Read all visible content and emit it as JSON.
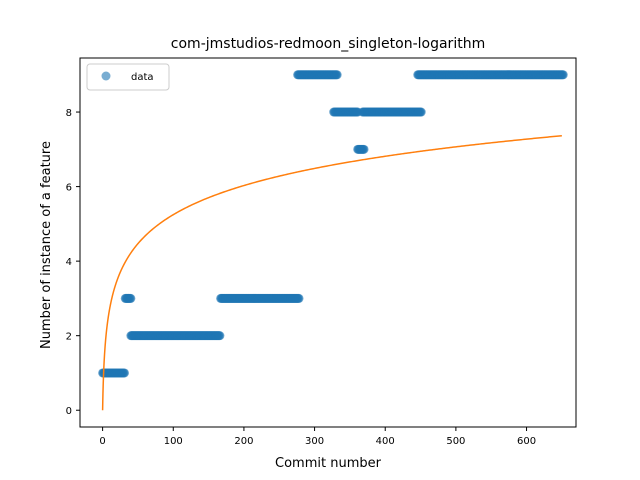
{
  "chart_data": {
    "type": "scatter",
    "title": "com-jmstudios-redmoon_singleton-logarithm",
    "xlabel": "Commit number",
    "ylabel": "Number of instance of a feature",
    "xlim": [
      -32,
      670
    ],
    "ylim": [
      -0.45,
      9.45
    ],
    "xticks": [
      0,
      100,
      200,
      300,
      400,
      500,
      600
    ],
    "yticks": [
      0,
      2,
      4,
      6,
      8
    ],
    "grid": false,
    "legend": {
      "position": "top-left",
      "entries": [
        "data"
      ]
    },
    "colors": {
      "data": "#1f77b4",
      "fit": "#ff7f0e"
    },
    "series": [
      {
        "name": "data",
        "kind": "scatter",
        "segments": [
          {
            "x_start": 0,
            "x_end": 31,
            "y": 1
          },
          {
            "x_start": 32,
            "x_end": 40,
            "y": 3
          },
          {
            "x_start": 40,
            "x_end": 166,
            "y": 2
          },
          {
            "x_start": 167,
            "x_end": 278,
            "y": 3
          },
          {
            "x_start": 276,
            "x_end": 332,
            "y": 9
          },
          {
            "x_start": 327,
            "x_end": 361,
            "y": 8
          },
          {
            "x_start": 361,
            "x_end": 370,
            "y": 7
          },
          {
            "x_start": 368,
            "x_end": 451,
            "y": 8
          },
          {
            "x_start": 446,
            "x_end": 652,
            "y": 9
          }
        ]
      },
      {
        "name": "",
        "kind": "line",
        "model": "logarithm",
        "coefficient": 1.1367,
        "x_range": [
          0,
          650
        ]
      }
    ]
  }
}
